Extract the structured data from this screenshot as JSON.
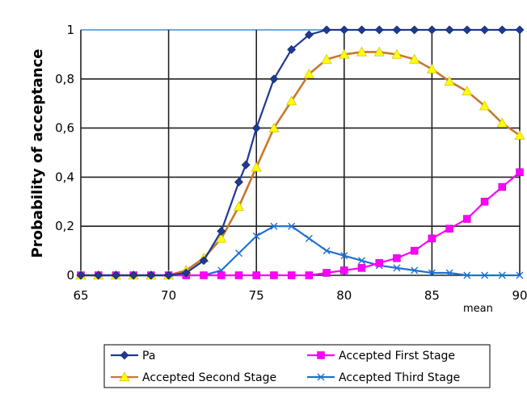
{
  "chart_data": {
    "type": "line",
    "title": "",
    "xlabel": "mean",
    "ylabel": "Probability of acceptance",
    "xlim": [
      65,
      90
    ],
    "ylim": [
      0,
      1
    ],
    "x_ticks": [
      "65",
      "70",
      "75",
      "80",
      "85",
      "90"
    ],
    "y_ticks": [
      "0",
      "0,2",
      "0,4",
      "0,6",
      "0,8",
      "1"
    ],
    "grid": true,
    "legend_position": "bottom",
    "series": [
      {
        "name": "Pa",
        "color": "#1f3a93",
        "marker": "diamond",
        "x": [
          65,
          66,
          67,
          68,
          69,
          70,
          71,
          72,
          73,
          74,
          74.4,
          75,
          76,
          77,
          78,
          79,
          80,
          81,
          82,
          83,
          84,
          85,
          86,
          87,
          88,
          89,
          90
        ],
        "values": [
          0,
          0,
          0,
          0,
          0,
          0,
          0.01,
          0.06,
          0.18,
          0.38,
          0.45,
          0.6,
          0.8,
          0.92,
          0.98,
          1,
          1,
          1,
          1,
          1,
          1,
          1,
          1,
          1,
          1,
          1,
          1
        ]
      },
      {
        "name": "Accepted  Second Stage",
        "color": "#c8782d",
        "marker_color": "#ffff00",
        "marker": "triangle",
        "x": [
          65,
          66,
          67,
          68,
          69,
          70,
          71,
          72,
          73,
          74,
          75,
          76,
          77,
          78,
          79,
          80,
          81,
          82,
          83,
          84,
          85,
          86,
          87,
          88,
          89,
          90
        ],
        "values": [
          0,
          0,
          0,
          0,
          0,
          0,
          0.02,
          0.07,
          0.15,
          0.28,
          0.44,
          0.6,
          0.71,
          0.82,
          0.88,
          0.9,
          0.91,
          0.91,
          0.9,
          0.88,
          0.84,
          0.79,
          0.75,
          0.69,
          0.62,
          0.57
        ]
      },
      {
        "name": "Accepted  First Stage",
        "color": "#ff00ff",
        "marker": "square",
        "x": [
          65,
          66,
          67,
          68,
          69,
          70,
          71,
          72,
          73,
          74,
          75,
          76,
          77,
          78,
          79,
          80,
          81,
          82,
          83,
          84,
          85,
          86,
          87,
          88,
          89,
          90
        ],
        "values": [
          0,
          0,
          0,
          0,
          0,
          0,
          0,
          0,
          0,
          0,
          0,
          0,
          0,
          0,
          0.01,
          0.02,
          0.03,
          0.05,
          0.07,
          0.1,
          0.15,
          0.19,
          0.23,
          0.3,
          0.36,
          0.42
        ]
      },
      {
        "name": "Accepted Third Stage",
        "color": "#1f6fd6",
        "marker": "x",
        "x": [
          65,
          66,
          67,
          68,
          69,
          70,
          71,
          72,
          73,
          74,
          75,
          76,
          77,
          78,
          79,
          80,
          81,
          82,
          83,
          84,
          85,
          86,
          87,
          88,
          89,
          90
        ],
        "values": [
          0,
          0,
          0,
          0,
          0,
          0,
          0,
          0,
          0.02,
          0.09,
          0.16,
          0.2,
          0.2,
          0.15,
          0.1,
          0.08,
          0.06,
          0.04,
          0.03,
          0.02,
          0.01,
          0.01,
          0,
          0,
          0,
          0
        ]
      }
    ]
  }
}
